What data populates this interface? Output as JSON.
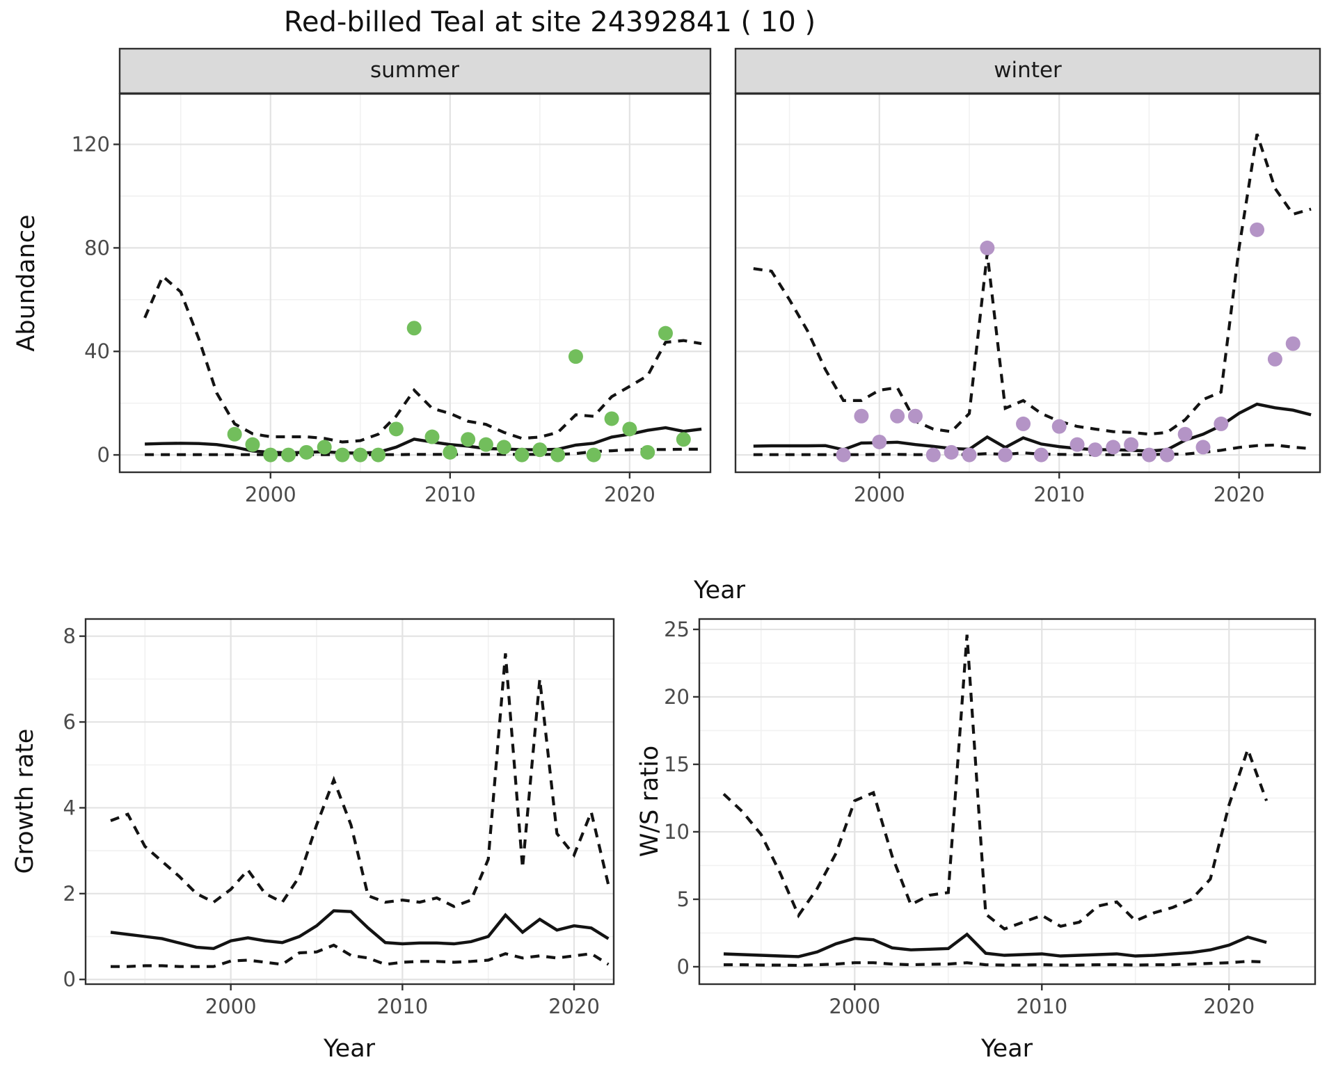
{
  "title": "Red-billed Teal at site 24392841 ( 10 )",
  "facets": [
    "summer",
    "winter"
  ],
  "axis_titles": {
    "abundance": "Abundance",
    "year": "Year",
    "growth_rate": "Growth rate",
    "ws_ratio": "W/S ratio"
  },
  "colors": {
    "summer_point": "#72BE5C",
    "winter_point": "#B494C6",
    "line": "#131313",
    "grid_major": "#E3E3E3",
    "grid_minor": "#F1F1F1",
    "panel_border": "#2F2F2F",
    "strip_fill": "#DADADA",
    "tick_label": "#4A4A4A",
    "tick_mark": "#333333",
    "background": "#FFFFFF"
  },
  "chart_data": [
    {
      "type": "line",
      "id": "abundance-summer",
      "facet": "summer",
      "title": "Red-billed Teal at site 24392841 ( 10 )",
      "xlabel": "Year",
      "ylabel": "Abundance",
      "xlim": [
        1991.6,
        2024.5
      ],
      "ylim": [
        -6.7,
        139.5
      ],
      "xticks": [
        2000,
        2010,
        2020
      ],
      "yticks": [
        0,
        40,
        80,
        120
      ],
      "xminor": [
        1995,
        2005,
        2015
      ],
      "yminor": [
        20,
        60,
        100
      ],
      "grid": true,
      "legend": "none",
      "years": [
        1993,
        1994,
        1995,
        1996,
        1997,
        1998,
        1999,
        2000,
        2001,
        2002,
        2003,
        2004,
        2005,
        2006,
        2007,
        2008,
        2009,
        2010,
        2011,
        2012,
        2013,
        2014,
        2015,
        2016,
        2017,
        2018,
        2019,
        2020,
        2021,
        2022,
        2023,
        2024
      ],
      "upper_ci": [
        53,
        69,
        63,
        45,
        24,
        12,
        8.2,
        7,
        7,
        7,
        6.4,
        5,
        5.5,
        8,
        15,
        25,
        18,
        16,
        13,
        11.8,
        8.7,
        6.4,
        6.9,
        8.7,
        15.5,
        14.9,
        22.5,
        26.5,
        30.6,
        43.5,
        44.2,
        43
      ],
      "fit": [
        4.2,
        4.4,
        4.5,
        4.4,
        4.0,
        3.0,
        1.5,
        1.0,
        0.8,
        1.0,
        1.2,
        0.8,
        0.7,
        1.0,
        3.0,
        6.1,
        5.0,
        4.0,
        3.4,
        2.4,
        2.3,
        2.0,
        2.0,
        2.2,
        3.8,
        4.5,
        6.9,
        8.0,
        9.5,
        10.5,
        9.1,
        10.0
      ],
      "lower_ci": [
        0.1,
        0.1,
        0.1,
        0.1,
        0.1,
        0.1,
        0.1,
        0.1,
        0.1,
        0.1,
        0.1,
        0.1,
        0.1,
        0.1,
        0.1,
        0.2,
        0.2,
        0.2,
        0.2,
        0.2,
        0.2,
        0.2,
        0.2,
        0.2,
        0.5,
        1.3,
        1.6,
        2.0,
        2.1,
        2.1,
        2.2,
        2.2
      ],
      "obs_years": [
        1998,
        1999,
        2000,
        2001,
        2002,
        2003,
        2004,
        2005,
        2006,
        2007,
        2008,
        2009,
        2010,
        2011,
        2012,
        2013,
        2014,
        2015,
        2016,
        2017,
        2018,
        2019,
        2020,
        2021,
        2022,
        2023
      ],
      "obs_values": [
        8,
        4,
        0,
        0,
        1,
        3,
        0,
        0,
        0,
        10,
        49,
        7,
        1,
        6,
        4,
        3,
        0,
        2,
        0,
        38,
        0,
        14,
        10,
        1,
        47,
        6
      ]
    },
    {
      "type": "line",
      "id": "abundance-winter",
      "facet": "winter",
      "xlabel": "Year",
      "ylabel": "Abundance",
      "xlim": [
        1992.0,
        2024.5
      ],
      "ylim": [
        -6.7,
        139.5
      ],
      "xticks": [
        2000,
        2010,
        2020
      ],
      "yticks": [
        0,
        40,
        80,
        120
      ],
      "xminor": [
        1995,
        2005,
        2015
      ],
      "yminor": [
        20,
        60,
        100
      ],
      "grid": true,
      "legend": "none",
      "years": [
        1993,
        1994,
        1995,
        1996,
        1997,
        1998,
        1999,
        2000,
        2001,
        2002,
        2003,
        2004,
        2005,
        2006,
        2007,
        2008,
        2009,
        2010,
        2011,
        2012,
        2013,
        2014,
        2015,
        2016,
        2017,
        2018,
        2019,
        2020,
        2021,
        2022,
        2023,
        2024
      ],
      "upper_ci": [
        72,
        71,
        60,
        48,
        33,
        21,
        21,
        25,
        26,
        13,
        10,
        9,
        16,
        78,
        18,
        21,
        16,
        13,
        11,
        10,
        9,
        8.7,
        8,
        8.7,
        13.6,
        21.4,
        24.3,
        80,
        124,
        103,
        93,
        95
      ],
      "fit": [
        3.4,
        3.5,
        3.5,
        3.5,
        3.6,
        2.0,
        4.6,
        4.7,
        4.9,
        4.0,
        3.3,
        2.5,
        2.2,
        6.9,
        2.9,
        6.6,
        4.2,
        3.2,
        2.5,
        2.0,
        2.0,
        1.8,
        1.5,
        2.0,
        5.7,
        8.0,
        11.3,
        16.1,
        19.6,
        18.2,
        17.3,
        15.5
      ],
      "lower_ci": [
        0.1,
        0.1,
        0.1,
        0.1,
        0.1,
        0.1,
        0.1,
        0.2,
        0.2,
        0.1,
        0.1,
        0.1,
        0.1,
        0.5,
        0.2,
        0.8,
        0.3,
        0.2,
        0.1,
        0.1,
        0.1,
        0.1,
        0.1,
        0.3,
        0.3,
        1.0,
        1.8,
        2.9,
        3.6,
        3.8,
        3.0,
        2.4
      ],
      "obs_years": [
        1998,
        1999,
        2000,
        2001,
        2002,
        2003,
        2004,
        2005,
        2006,
        2007,
        2008,
        2009,
        2010,
        2011,
        2012,
        2013,
        2014,
        2015,
        2016,
        2017,
        2018,
        2019,
        2021,
        2022,
        2023
      ],
      "obs_values": [
        0,
        15,
        5,
        15,
        15,
        0,
        1,
        0,
        80,
        0,
        12,
        0,
        11,
        4,
        2,
        3,
        4,
        0,
        0,
        8,
        3,
        12,
        87,
        37,
        43
      ]
    },
    {
      "type": "line",
      "id": "growth-rate",
      "xlabel": "Year",
      "ylabel": "Growth rate",
      "xlim": [
        1991.54,
        2022.31
      ],
      "ylim": [
        -0.11,
        8.4
      ],
      "xticks": [
        2000,
        2010,
        2020
      ],
      "yticks": [
        0,
        2,
        4,
        6,
        8
      ],
      "xminor": [
        1995,
        2005,
        2015
      ],
      "yminor": [
        1,
        3,
        5,
        7
      ],
      "grid": true,
      "legend": "none",
      "years": [
        1993,
        1994,
        1995,
        1996,
        1997,
        1998,
        1999,
        2000,
        2001,
        2002,
        2003,
        2004,
        2005,
        2006,
        2007,
        2008,
        2009,
        2010,
        2011,
        2012,
        2013,
        2014,
        2015,
        2016,
        2017,
        2018,
        2019,
        2020,
        2021,
        2022
      ],
      "upper_ci": [
        3.7,
        3.85,
        3.1,
        2.75,
        2.4,
        2.0,
        1.8,
        2.1,
        2.55,
        2.0,
        1.8,
        2.4,
        3.6,
        4.65,
        3.6,
        1.95,
        1.8,
        1.85,
        1.8,
        1.9,
        1.7,
        1.85,
        2.8,
        7.6,
        2.6,
        7.0,
        3.4,
        2.9,
        3.9,
        2.2
      ],
      "fit": [
        1.1,
        1.05,
        1.0,
        0.95,
        0.85,
        0.75,
        0.72,
        0.9,
        0.97,
        0.9,
        0.86,
        1.0,
        1.25,
        1.6,
        1.58,
        1.2,
        0.86,
        0.83,
        0.85,
        0.85,
        0.83,
        0.88,
        1.0,
        1.5,
        1.1,
        1.4,
        1.15,
        1.25,
        1.2,
        0.95
      ],
      "lower_ci": [
        0.3,
        0.3,
        0.32,
        0.32,
        0.3,
        0.3,
        0.3,
        0.43,
        0.45,
        0.4,
        0.35,
        0.62,
        0.64,
        0.8,
        0.56,
        0.5,
        0.35,
        0.4,
        0.42,
        0.42,
        0.4,
        0.42,
        0.45,
        0.6,
        0.5,
        0.55,
        0.5,
        0.55,
        0.6,
        0.35
      ],
      "obs_years": [],
      "obs_values": []
    },
    {
      "type": "line",
      "id": "ws-ratio",
      "xlabel": "Year",
      "ylabel": "W/S ratio",
      "xlim": [
        1991.7,
        2024.6
      ],
      "ylim": [
        -1.29,
        25.77
      ],
      "xticks": [
        2000,
        2010,
        2020
      ],
      "yticks": [
        0,
        5,
        10,
        15,
        20,
        25
      ],
      "xminor": [
        1995,
        2005,
        2015
      ],
      "yminor": [
        2.5,
        7.5,
        12.5,
        17.5,
        22.5
      ],
      "grid": true,
      "legend": "none",
      "years": [
        1993,
        1994,
        1995,
        1996,
        1997,
        1998,
        1999,
        2000,
        2001,
        2002,
        2003,
        2004,
        2005,
        2006,
        2007,
        2008,
        2009,
        2010,
        2011,
        2012,
        2013,
        2014,
        2015,
        2016,
        2017,
        2018,
        2019,
        2020,
        2021,
        2022
      ],
      "upper_ci": [
        12.8,
        11.5,
        9.8,
        7.0,
        3.8,
        5.8,
        8.4,
        12.3,
        12.9,
        8.2,
        4.6,
        5.3,
        5.5,
        24.6,
        3.9,
        2.8,
        3.3,
        3.8,
        3.0,
        3.3,
        4.5,
        4.8,
        3.4,
        4.0,
        4.4,
        5.0,
        6.5,
        12.0,
        16.1,
        12.3
      ],
      "fit": [
        0.95,
        0.9,
        0.85,
        0.8,
        0.75,
        1.1,
        1.7,
        2.1,
        2.0,
        1.4,
        1.25,
        1.3,
        1.35,
        2.4,
        1.0,
        0.85,
        0.9,
        0.95,
        0.8,
        0.85,
        0.9,
        0.95,
        0.8,
        0.85,
        0.95,
        1.05,
        1.25,
        1.6,
        2.2,
        1.8
      ],
      "lower_ci": [
        0.15,
        0.15,
        0.12,
        0.12,
        0.1,
        0.15,
        0.2,
        0.3,
        0.3,
        0.2,
        0.15,
        0.18,
        0.2,
        0.3,
        0.15,
        0.12,
        0.12,
        0.15,
        0.12,
        0.12,
        0.15,
        0.15,
        0.12,
        0.15,
        0.15,
        0.2,
        0.25,
        0.3,
        0.4,
        0.35
      ],
      "obs_years": [],
      "obs_values": []
    }
  ]
}
